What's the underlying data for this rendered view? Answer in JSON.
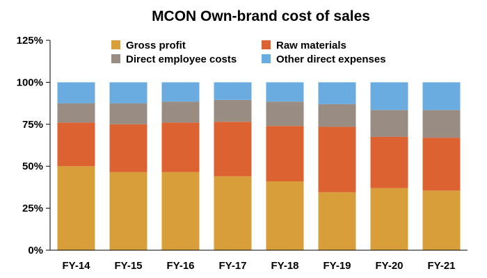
{
  "chart_data": {
    "type": "bar",
    "stacked": true,
    "title": "MCON Own-brand cost of sales",
    "xlabel": "",
    "ylabel": "",
    "ylim": [
      0,
      125
    ],
    "yticks": [
      "0%",
      "25%",
      "50%",
      "75%",
      "100%",
      "125%"
    ],
    "ytick_values": [
      0,
      25,
      50,
      75,
      100,
      125
    ],
    "grid": false,
    "legend_position": "top",
    "categories": [
      "FY-14",
      "FY-15",
      "FY-16",
      "FY-17",
      "FY-18",
      "FY-19",
      "FY-20",
      "FY-21"
    ],
    "series": [
      {
        "name": "Gross profit",
        "color": "#d89e3a",
        "values": [
          50,
          46.5,
          46.5,
          44,
          41,
          34.5,
          37,
          35.5
        ]
      },
      {
        "name": "Raw materials",
        "color": "#dc6232",
        "values": [
          26,
          28.5,
          29.5,
          32.5,
          33,
          39,
          30.5,
          31.5
        ]
      },
      {
        "name": "Direct employee costs",
        "color": "#998c82",
        "values": [
          11.5,
          12.5,
          12.5,
          13,
          14.5,
          13.5,
          16,
          16.5
        ]
      },
      {
        "name": "Other direct expenses",
        "color": "#6aace0",
        "values": [
          12.5,
          12.5,
          11.5,
          10.5,
          11.5,
          13,
          16.5,
          16.5
        ]
      }
    ]
  }
}
